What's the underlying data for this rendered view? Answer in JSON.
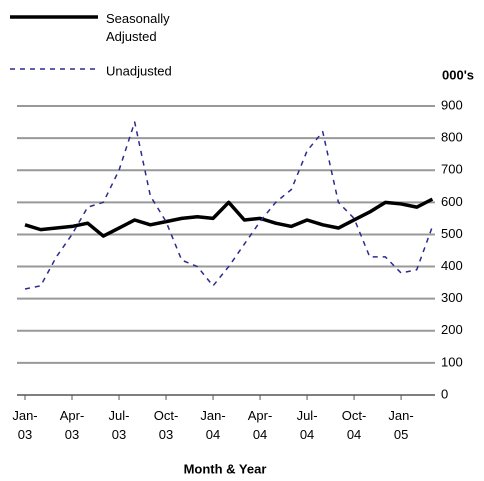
{
  "chart_data": {
    "type": "line",
    "x_label": "Month & Year",
    "y_label": "000's",
    "categories": [
      "Jan-03",
      null,
      null,
      "Apr-03",
      null,
      null,
      "Jul-03",
      null,
      null,
      "Oct-03",
      null,
      null,
      "Jan-04",
      null,
      null,
      "Apr-04",
      null,
      null,
      "Jul-04",
      null,
      null,
      "Oct-04",
      null,
      null,
      "Jan-05",
      null,
      null
    ],
    "series": [
      {
        "name": "Seasonally Adjusted",
        "color": "#000000",
        "style": "solid",
        "values": [
          530,
          515,
          520,
          525,
          535,
          495,
          520,
          545,
          530,
          540,
          550,
          555,
          550,
          600,
          545,
          550,
          535,
          525,
          545,
          530,
          520,
          545,
          570,
          600,
          595,
          585,
          610
        ]
      },
      {
        "name": "Unadjusted",
        "color": "#2b2b8c",
        "style": "dashed",
        "values": [
          330,
          340,
          430,
          500,
          585,
          600,
          700,
          850,
          620,
          540,
          420,
          400,
          340,
          400,
          470,
          540,
          600,
          640,
          760,
          820,
          600,
          550,
          430,
          430,
          380,
          390,
          525
        ]
      }
    ],
    "ylim": [
      0,
      900
    ],
    "yticks": [
      0,
      100,
      200,
      300,
      400,
      500,
      600,
      700,
      800,
      900
    ],
    "grid": true,
    "legend": "top-left"
  }
}
